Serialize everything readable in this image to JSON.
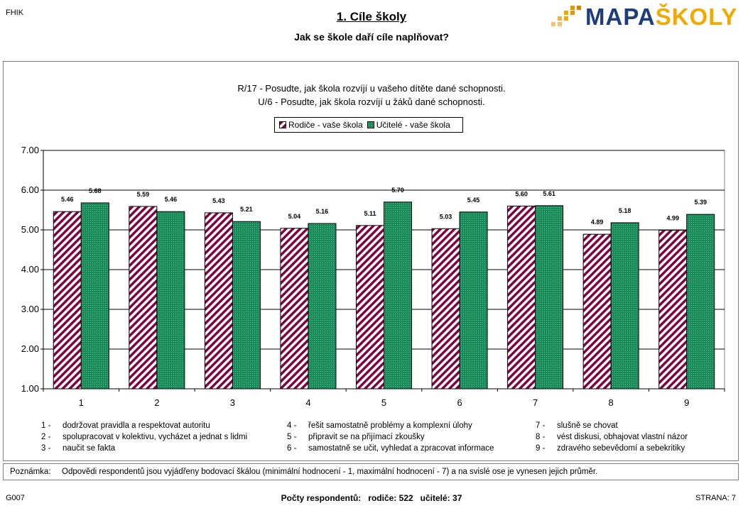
{
  "header": {
    "code": "FHIK",
    "title": "1. Cíle školy",
    "subtitle": "Jak se škole daří cíle naplňovat?",
    "logo_part1": "MAPA",
    "logo_part2": "ŠKOLY"
  },
  "chart_data": {
    "type": "bar",
    "title_line1": "R/17 - Posudte, jak škola rozvíjí u vašeho dítěte dané schopnosti.",
    "title_line2": "U/6 - Posudte, jak škola rozvíjí u žáků dané schopnosti.",
    "categories": [
      "1",
      "2",
      "3",
      "4",
      "5",
      "6",
      "7",
      "8",
      "9"
    ],
    "series": [
      {
        "name": "Rodiče - vaše škola",
        "values": [
          5.46,
          5.59,
          5.43,
          5.04,
          5.11,
          5.03,
          5.6,
          4.89,
          4.99
        ],
        "color": "#800040",
        "pattern": "diagonal-stripes"
      },
      {
        "name": "Učitelé - vaše škola",
        "values": [
          5.68,
          5.46,
          5.21,
          5.16,
          5.7,
          5.45,
          5.61,
          5.18,
          5.39
        ],
        "color": "#1a8a5a",
        "pattern": "dotted-green"
      }
    ],
    "ylim": [
      1,
      7
    ],
    "yticks": [
      "1.00",
      "2.00",
      "3.00",
      "4.00",
      "5.00",
      "6.00",
      "7.00"
    ],
    "grid": true,
    "legend_position": "top-center"
  },
  "descriptions": [
    {
      "num": "1",
      "text": "dodržovat pravidla a respektovat autoritu"
    },
    {
      "num": "2",
      "text": "spolupracovat v kolektivu, vycházet a jednat s lidmi"
    },
    {
      "num": "3",
      "text": "naučit se fakta"
    },
    {
      "num": "4",
      "text": "řešit samostatně problémy a komplexní úlohy"
    },
    {
      "num": "5",
      "text": "připravit se na přijímací zkoušky"
    },
    {
      "num": "6",
      "text": "samostatně se učit, vyhledat a zpracovat informace"
    },
    {
      "num": "7",
      "text": "slušně se chovat"
    },
    {
      "num": "8",
      "text": "vést diskusi, obhajovat vlastní názor"
    },
    {
      "num": "9",
      "text": "zdravého sebevědomí a sebekritiky"
    }
  ],
  "note": {
    "label": "Poznámka:",
    "text": "Odpovědi respondentů jsou vyjádřeny bodovací škálou (minimální hodnocení - 1, maximální hodnocení - 7) a na svislé ose je vynesen jejich průměr."
  },
  "footer": {
    "code": "G007",
    "respondents": "Počty respondentů:   rodiče: 522   učitelé: 37",
    "page": "STRANA: 7"
  }
}
